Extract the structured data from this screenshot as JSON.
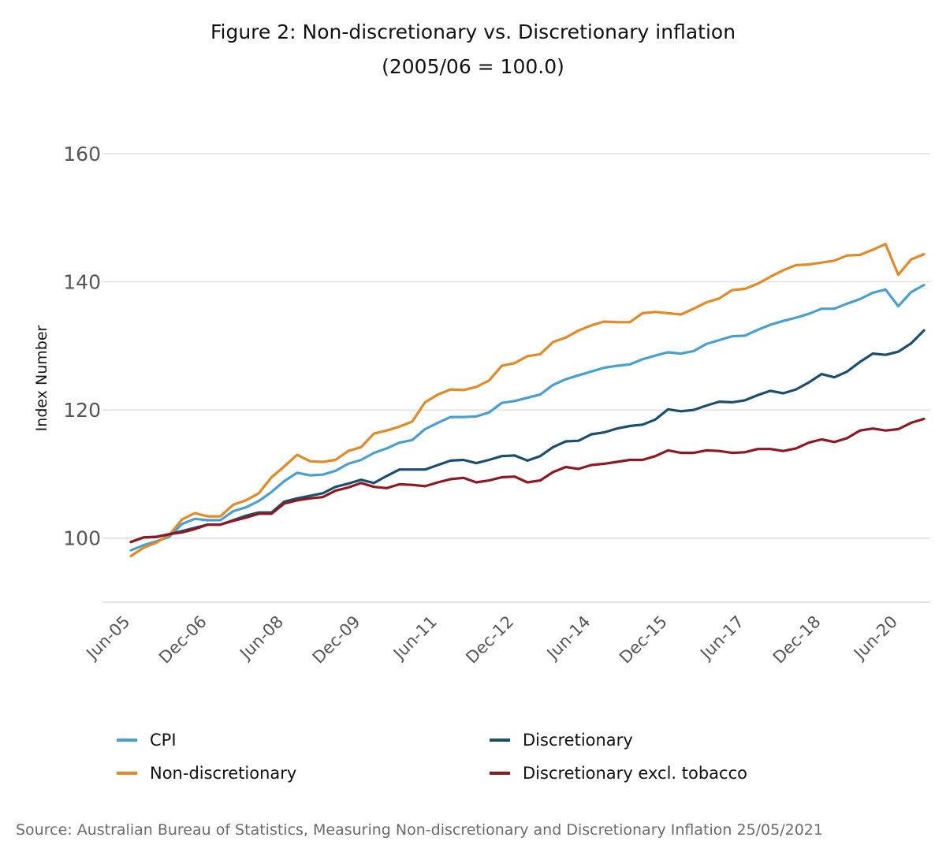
{
  "chart_data": {
    "type": "line",
    "title": "Figure 2: Non-discretionary vs. Discretionary inflation",
    "subtitle": "(2005/06 = 100.0)",
    "ylabel": "Index Number",
    "xlabel": "",
    "ylim": [
      90,
      160
    ],
    "yticks": [
      100,
      120,
      140,
      160
    ],
    "grid": "horizontal",
    "legend_position": "bottom",
    "x_tick_labels": [
      "Jun-05",
      "Dec-06",
      "Jun-08",
      "Dec-09",
      "Jun-11",
      "Dec-12",
      "Jun-14",
      "Dec-15",
      "Jun-17",
      "Dec-18",
      "Jun-20"
    ],
    "x_tick_start_index": 0,
    "x_tick_step": 6,
    "series": [
      {
        "name": "CPI",
        "color": "#4a9fd0",
        "values": [
          98.1,
          98.9,
          99.5,
          100.2,
          102.2,
          103.0,
          102.8,
          102.8,
          104.2,
          104.8,
          105.8,
          107.2,
          108.9,
          110.2,
          109.8,
          109.9,
          110.5,
          111.6,
          112.2,
          113.3,
          114.0,
          114.9,
          115.3,
          117.0,
          118.0,
          118.9,
          118.9,
          119.0,
          119.6,
          121.1,
          121.4,
          121.9,
          122.4,
          123.9,
          124.8,
          125.4,
          126.0,
          126.6,
          126.9,
          127.1,
          127.9,
          128.5,
          129.0,
          128.8,
          129.2,
          130.3,
          130.9,
          131.5,
          131.6,
          132.5,
          133.3,
          133.9,
          134.4,
          135.0,
          135.8,
          135.8,
          136.6,
          137.3,
          138.3,
          138.8,
          136.2,
          138.4,
          139.5
        ]
      },
      {
        "name": "Non-discretionary",
        "color": "#e08a2a",
        "values": [
          97.2,
          98.5,
          99.3,
          100.5,
          102.9,
          103.9,
          103.4,
          103.4,
          105.2,
          105.9,
          107.0,
          109.5,
          111.2,
          113.0,
          112.0,
          111.9,
          112.2,
          113.6,
          114.2,
          116.3,
          116.8,
          117.4,
          118.2,
          121.2,
          122.4,
          123.2,
          123.1,
          123.6,
          124.6,
          126.9,
          127.3,
          128.4,
          128.7,
          130.6,
          131.3,
          132.4,
          133.2,
          133.8,
          133.7,
          133.7,
          135.1,
          135.3,
          135.1,
          134.9,
          135.8,
          136.8,
          137.4,
          138.7,
          138.9,
          139.7,
          140.8,
          141.8,
          142.6,
          142.7,
          143.0,
          143.3,
          144.1,
          144.2,
          145.0,
          145.9,
          141.1,
          143.5,
          144.3
        ]
      },
      {
        "name": "Discretionary",
        "color": "#1d4e6e",
        "values": [
          99.4,
          100.1,
          100.2,
          100.6,
          101.1,
          101.6,
          102.1,
          102.1,
          102.8,
          103.5,
          104.0,
          104.0,
          105.7,
          106.2,
          106.6,
          107.0,
          108.0,
          108.5,
          109.1,
          108.6,
          109.7,
          110.7,
          110.7,
          110.7,
          111.4,
          112.1,
          112.2,
          111.7,
          112.2,
          112.8,
          112.9,
          112.1,
          112.8,
          114.2,
          115.1,
          115.2,
          116.2,
          116.5,
          117.1,
          117.5,
          117.7,
          118.5,
          120.1,
          119.8,
          120.0,
          120.7,
          121.3,
          121.2,
          121.5,
          122.3,
          123.0,
          122.6,
          123.2,
          124.3,
          125.6,
          125.1,
          126.0,
          127.5,
          128.8,
          128.6,
          129.1,
          130.4,
          132.4
        ]
      },
      {
        "name": "Discretionary excl. tobacco",
        "color": "#8b1a22",
        "values": [
          99.4,
          100.1,
          100.2,
          100.6,
          100.9,
          101.4,
          102.1,
          102.1,
          102.7,
          103.2,
          103.8,
          103.8,
          105.4,
          105.9,
          106.2,
          106.4,
          107.4,
          107.9,
          108.6,
          108.0,
          107.8,
          108.4,
          108.3,
          108.1,
          108.7,
          109.2,
          109.4,
          108.7,
          109.0,
          109.5,
          109.6,
          108.7,
          109.0,
          110.3,
          111.1,
          110.8,
          111.4,
          111.6,
          111.9,
          112.2,
          112.2,
          112.8,
          113.7,
          113.3,
          113.3,
          113.7,
          113.6,
          113.3,
          113.4,
          113.9,
          113.9,
          113.6,
          114.0,
          114.9,
          115.4,
          115.0,
          115.6,
          116.8,
          117.1,
          116.8,
          117.0,
          118.0,
          118.6
        ]
      }
    ],
    "legend": [
      {
        "label": "CPI",
        "color": "#4a9fd0"
      },
      {
        "label": "Discretionary",
        "color": "#1d4e6e"
      },
      {
        "label": "Non-discretionary",
        "color": "#e08a2a"
      },
      {
        "label": "Discretionary excl. tobacco",
        "color": "#8b1a22"
      }
    ],
    "source": "Source: Australian Bureau of Statistics, Measuring Non-discretionary and Discretionary Inflation 25/05/2021"
  }
}
